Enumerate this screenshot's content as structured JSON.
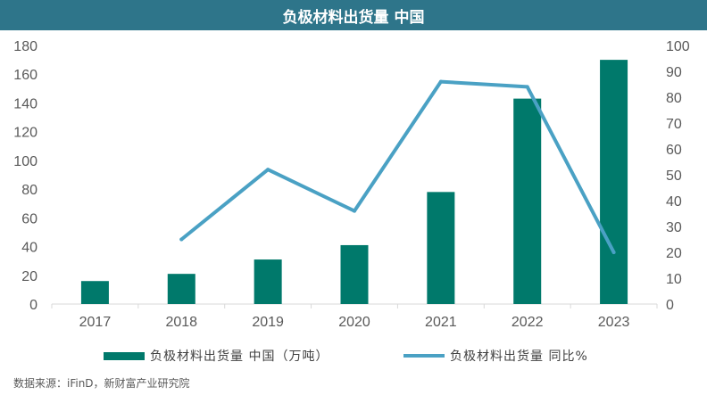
{
  "title": "负极材料出货量 中国",
  "source": "数据来源：iFinD，新财富产业研究院",
  "colors": {
    "bar": "#00796b",
    "line": "#4aa1c4",
    "title_bg": "#2e758a"
  },
  "chart_data": {
    "type": "bar",
    "categories": [
      "2017",
      "2018",
      "2019",
      "2020",
      "2021",
      "2022",
      "2023"
    ],
    "series": [
      {
        "name": "负极材料出货量  中国（万吨）",
        "type": "bar",
        "axis": "left",
        "values": [
          16,
          21,
          31,
          41,
          78,
          143,
          170
        ]
      },
      {
        "name": "负极材料出货量  同比%",
        "type": "line",
        "axis": "right",
        "values": [
          null,
          25,
          52,
          36,
          86,
          84,
          20
        ]
      }
    ],
    "y_left": {
      "min": 0,
      "max": 180,
      "ticks": [
        0,
        20,
        40,
        60,
        80,
        100,
        120,
        140,
        160,
        180
      ]
    },
    "y_right": {
      "min": 0,
      "max": 100,
      "ticks": [
        0,
        10,
        20,
        30,
        40,
        50,
        60,
        70,
        80,
        90,
        100
      ]
    },
    "grid": false,
    "legend_position": "bottom"
  }
}
